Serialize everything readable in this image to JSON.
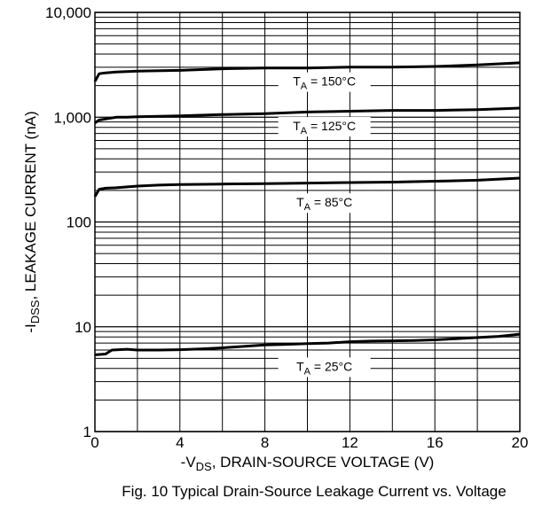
{
  "chart_data": {
    "type": "line",
    "title": "",
    "caption": "Fig. 10 Typical Drain-Source Leakage Current vs. Voltage",
    "xlabel": {
      "prefix": "-V",
      "sub": "DS",
      "rest": ", DRAIN-SOURCE VOLTAGE (V)"
    },
    "ylabel": {
      "prefix": "-I",
      "sub": "DSS",
      "rest": ", LEAKAGE CURRENT (nA)"
    },
    "xlim": [
      0,
      20
    ],
    "ylim": [
      1,
      10000
    ],
    "y_scale": "log",
    "grid": true,
    "x_ticks": [
      0,
      4,
      8,
      12,
      16,
      20
    ],
    "x_tick_labels": [
      "0",
      "4",
      "8",
      "12",
      "16",
      "20"
    ],
    "y_ticks": [
      1,
      10,
      100,
      1000,
      10000
    ],
    "y_tick_labels": [
      "1",
      "10",
      "100",
      "1,000",
      "10,000"
    ],
    "series": [
      {
        "label": {
          "prefix": "T",
          "sub": "A",
          "rest": " = 150°C"
        },
        "label_at": {
          "x": 10.8,
          "y": 2000
        },
        "x": [
          0,
          0.2,
          0.5,
          1,
          2,
          4,
          6,
          8,
          10,
          12,
          14,
          16,
          18,
          20
        ],
        "y": [
          2200,
          2600,
          2650,
          2700,
          2750,
          2800,
          2900,
          2950,
          2950,
          3000,
          3000,
          3050,
          3150,
          3300
        ]
      },
      {
        "label": {
          "prefix": "T",
          "sub": "A",
          "rest": " = 125°C"
        },
        "label_at": {
          "x": 10.8,
          "y": 750
        },
        "x": [
          0,
          0.2,
          0.5,
          1,
          1.5,
          2,
          4,
          6,
          8,
          10,
          12,
          14,
          16,
          18,
          20
        ],
        "y": [
          880,
          940,
          960,
          1000,
          1000,
          1010,
          1030,
          1060,
          1080,
          1120,
          1140,
          1160,
          1160,
          1180,
          1220
        ]
      },
      {
        "label": {
          "prefix": "T",
          "sub": "A",
          "rest": " = 85°C"
        },
        "label_at": {
          "x": 10.8,
          "y": 140
        },
        "x": [
          0,
          0.2,
          0.5,
          1,
          2,
          3,
          4,
          6,
          8,
          10,
          12,
          14,
          16,
          18,
          20
        ],
        "y": [
          175,
          205,
          210,
          212,
          220,
          225,
          228,
          230,
          232,
          235,
          238,
          240,
          245,
          250,
          262
        ]
      },
      {
        "label": {
          "prefix": "T",
          "sub": "A",
          "rest": " = 25°C"
        },
        "label_at": {
          "x": 10.8,
          "y": 3.8
        },
        "x": [
          0,
          0.5,
          0.8,
          1.5,
          2,
          3,
          4,
          5,
          6,
          7,
          8,
          9,
          10,
          11,
          12,
          13,
          14,
          15,
          16,
          17,
          18,
          19,
          20
        ],
        "y": [
          5.4,
          5.5,
          6.0,
          6.1,
          6.0,
          6.0,
          6.05,
          6.15,
          6.3,
          6.5,
          6.7,
          6.8,
          6.9,
          7.0,
          7.2,
          7.3,
          7.35,
          7.4,
          7.5,
          7.7,
          7.9,
          8.1,
          8.5
        ]
      }
    ]
  }
}
